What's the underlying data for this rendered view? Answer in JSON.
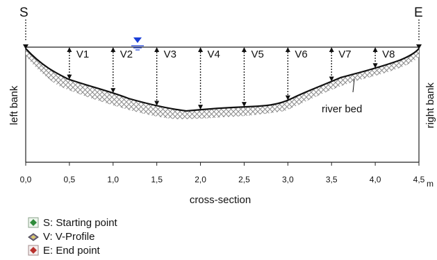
{
  "markers": {
    "start": "S",
    "end": "E"
  },
  "banks": {
    "left": "left bank",
    "right": "right bank"
  },
  "axis": {
    "title": "cross-section",
    "unit": "m",
    "ticks": [
      "0,0",
      "0,5",
      "1,0",
      "1,5",
      "2,0",
      "2,5",
      "3,0",
      "3,5",
      "4,0",
      "4,5"
    ],
    "xlim": [
      0,
      4.5
    ]
  },
  "riverbed_label": "river bed",
  "water_level_color": "#1a3fd8",
  "profiles": [
    {
      "label": "V1",
      "x": 0.5
    },
    {
      "label": "V2",
      "x": 1.0
    },
    {
      "label": "V3",
      "x": 1.5
    },
    {
      "label": "V4",
      "x": 2.0
    },
    {
      "label": "V5",
      "x": 2.5
    },
    {
      "label": "V6",
      "x": 3.0
    },
    {
      "label": "V7",
      "x": 3.5
    },
    {
      "label": "V8",
      "x": 4.0
    }
  ],
  "legend": [
    {
      "icon": "starting-point-icon",
      "text": "S: Starting  point"
    },
    {
      "icon": "v-profile-icon",
      "text": "V: V-Profile"
    },
    {
      "icon": "end-point-icon",
      "text": "E: End point"
    }
  ]
}
